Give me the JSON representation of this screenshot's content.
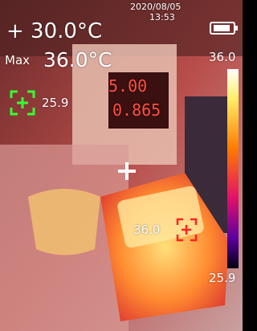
{
  "header": {
    "center_temp": "+ 30.0°C",
    "date": "2020/08/05",
    "time": "13:53"
  },
  "max_readout": {
    "label": "Max",
    "value": "36.0°C"
  },
  "markers": {
    "min_value": "25.9",
    "max_value": "36.0"
  },
  "scale": {
    "top": "36.0",
    "bottom": "25.9"
  },
  "scene": {
    "display_top": "5.00",
    "display_bottom": "0.865"
  }
}
